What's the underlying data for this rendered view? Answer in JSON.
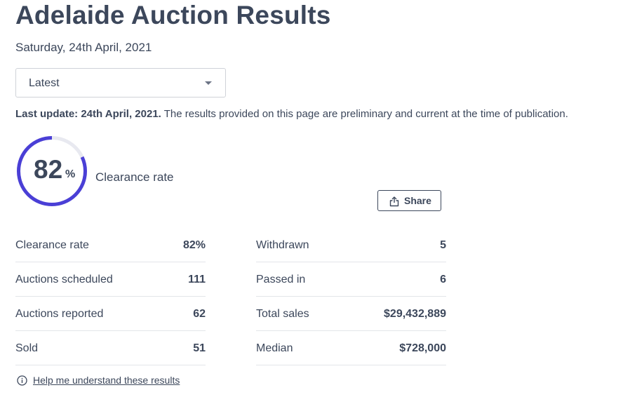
{
  "page": {
    "title": "Adelaide Auction Results",
    "date": "Saturday, 24th April, 2021"
  },
  "filter": {
    "selected": "Latest"
  },
  "update": {
    "label": "Last update: 24th April, 2021.",
    "note": " The results provided on this page are preliminary and current at the time of publication."
  },
  "gauge": {
    "value": "82",
    "percent_sign": "%",
    "caption": "Clearance rate",
    "fraction": 0.82,
    "track_color": "#e8e9f0",
    "fill_color": "#4a3fd6"
  },
  "share": {
    "label": "Share",
    "icon": "share-icon"
  },
  "stats": {
    "left": [
      {
        "label": "Clearance rate",
        "value": "82%"
      },
      {
        "label": "Auctions scheduled",
        "value": "111"
      },
      {
        "label": "Auctions reported",
        "value": "62"
      },
      {
        "label": "Sold",
        "value": "51"
      }
    ],
    "right": [
      {
        "label": "Withdrawn",
        "value": "5"
      },
      {
        "label": "Passed in",
        "value": "6"
      },
      {
        "label": "Total sales",
        "value": "$29,432,889"
      },
      {
        "label": "Median",
        "value": "$728,000"
      }
    ]
  },
  "help": {
    "label": "Help me understand these results",
    "icon": "info-icon"
  }
}
